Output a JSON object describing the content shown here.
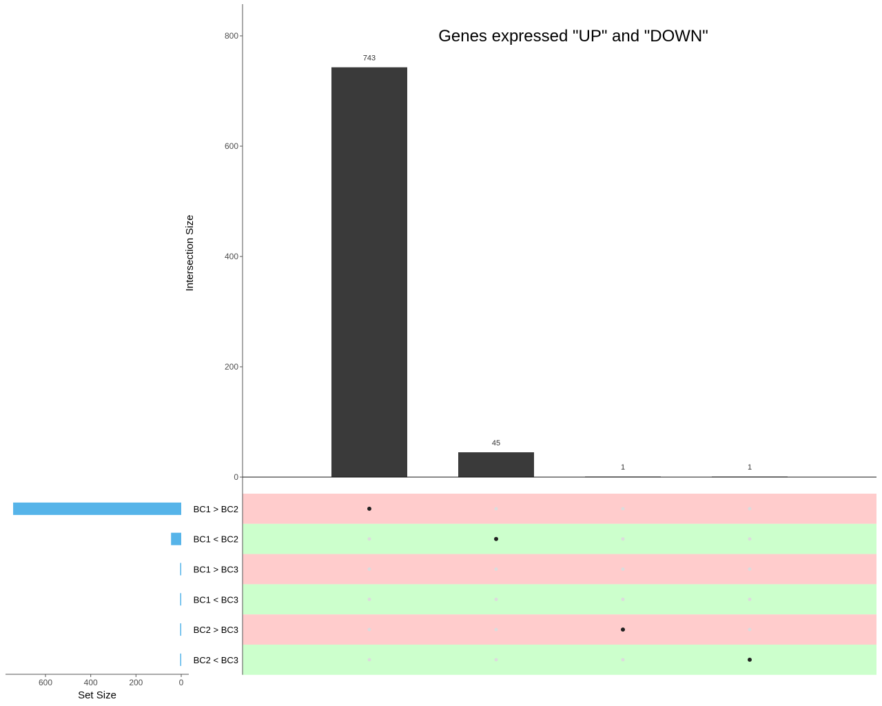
{
  "chart_data": {
    "type": "upset",
    "title": "Genes expressed \"UP\" and \"DOWN\"",
    "intersection_axis": {
      "label": "Intersection Size",
      "ylim": [
        0,
        860
      ],
      "ticks": [
        0,
        200,
        400,
        600,
        800
      ],
      "tick_labels": [
        "0",
        "200",
        "400",
        "600",
        "800"
      ]
    },
    "set_size_axis": {
      "label": "Set Size",
      "xlim": [
        0,
        800
      ],
      "ticks": [
        600,
        400,
        200,
        0
      ],
      "tick_labels": [
        "600",
        "400",
        "200",
        "0"
      ]
    },
    "sets": [
      {
        "name": "BC1 > BC2",
        "size": 743,
        "row_color": "#ffcccc"
      },
      {
        "name": "BC1 < BC2",
        "size": 45,
        "row_color": "#ccffcc"
      },
      {
        "name": "BC1 > BC3",
        "size": 1,
        "row_color": "#ffcccc"
      },
      {
        "name": "BC1 < BC3",
        "size": 1,
        "row_color": "#ccffcc"
      },
      {
        "name": "BC2 > BC3",
        "size": 1,
        "row_color": "#ffcccc"
      },
      {
        "name": "BC2 < BC3",
        "size": 1,
        "row_color": "#ccffcc"
      }
    ],
    "intersections": [
      {
        "size": 743,
        "label": "743",
        "sets": [
          "BC1 > BC2"
        ]
      },
      {
        "size": 45,
        "label": "45",
        "sets": [
          "BC1 < BC2"
        ]
      },
      {
        "size": 1,
        "label": "1",
        "sets": [
          "BC2 > BC3"
        ]
      },
      {
        "size": 1,
        "label": "1",
        "sets": [
          "BC2 < BC3"
        ]
      }
    ],
    "colors": {
      "intersection_bar": "#3a3a3a",
      "set_bar": "#56b4e9",
      "dot_active": "#222222",
      "dot_inactive": "#dcdcdc",
      "axis": "#333333"
    }
  }
}
